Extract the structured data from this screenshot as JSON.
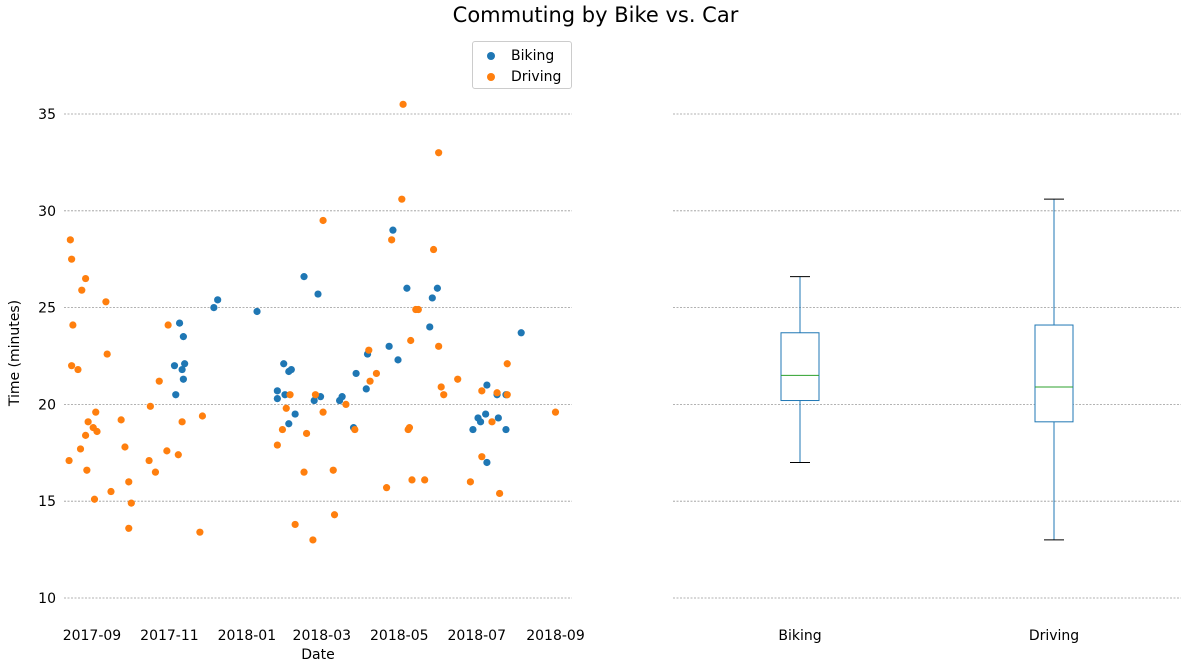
{
  "title": "Commuting by Bike vs. Car",
  "colors": {
    "biking": "#1f77b4",
    "driving": "#ff7f0e",
    "median": "#2ca02c",
    "grid": "#999999"
  },
  "chart_data": [
    {
      "type": "scatter",
      "xlabel": "Date",
      "ylabel": "Time (minutes)",
      "ylim": [
        9,
        38
      ],
      "xlim": [
        "2017-08-10",
        "2018-09-14"
      ],
      "x_ticks": [
        "2017-09",
        "2017-11",
        "2018-01",
        "2018-03",
        "2018-05",
        "2018-07",
        "2018-09"
      ],
      "y_ticks": [
        10,
        15,
        20,
        25,
        30,
        35
      ],
      "grid": "y-dotted",
      "legend": "top-right",
      "series": [
        {
          "name": "Biking",
          "points": [
            [
              "2017-11-06",
              20.5
            ],
            [
              "2017-11-05",
              22.0
            ],
            [
              "2017-11-09",
              24.2
            ],
            [
              "2017-11-11",
              21.8
            ],
            [
              "2017-11-12",
              23.5
            ],
            [
              "2017-11-12",
              21.3
            ],
            [
              "2017-11-13",
              22.1
            ],
            [
              "2017-12-06",
              25.0
            ],
            [
              "2017-12-09",
              25.4
            ],
            [
              "2018-01-09",
              24.8
            ],
            [
              "2018-01-25",
              20.3
            ],
            [
              "2018-01-25",
              20.7
            ],
            [
              "2018-01-30",
              22.1
            ],
            [
              "2018-01-31",
              20.5
            ],
            [
              "2018-02-03",
              21.7
            ],
            [
              "2018-02-05",
              21.8
            ],
            [
              "2018-02-03",
              19.0
            ],
            [
              "2018-02-08",
              19.5
            ],
            [
              "2018-02-15",
              26.6
            ],
            [
              "2018-02-23",
              20.2
            ],
            [
              "2018-02-26",
              25.7
            ],
            [
              "2018-02-28",
              20.4
            ],
            [
              "2018-03-15",
              20.2
            ],
            [
              "2018-03-17",
              20.4
            ],
            [
              "2018-03-26",
              18.8
            ],
            [
              "2018-03-28",
              21.6
            ],
            [
              "2018-04-05",
              20.8
            ],
            [
              "2018-04-06",
              22.6
            ],
            [
              "2018-04-23",
              23.0
            ],
            [
              "2018-04-26",
              29.0
            ],
            [
              "2018-04-30",
              22.3
            ],
            [
              "2018-05-07",
              26.0
            ],
            [
              "2018-05-25",
              24.0
            ],
            [
              "2018-05-27",
              25.5
            ],
            [
              "2018-05-31",
              26.0
            ],
            [
              "2018-06-28",
              18.7
            ],
            [
              "2018-07-02",
              19.3
            ],
            [
              "2018-07-04",
              19.1
            ],
            [
              "2018-07-08",
              19.5
            ],
            [
              "2018-07-09",
              21.0
            ],
            [
              "2018-07-09",
              17.0
            ],
            [
              "2018-07-17",
              20.5
            ],
            [
              "2018-07-18",
              19.3
            ],
            [
              "2018-07-24",
              20.5
            ],
            [
              "2018-07-24",
              18.7
            ],
            [
              "2018-08-05",
              23.7
            ]
          ]
        },
        {
          "name": "Driving",
          "points": [
            [
              "2017-08-14",
              17.1
            ],
            [
              "2017-08-15",
              28.5
            ],
            [
              "2017-08-16",
              27.5
            ],
            [
              "2017-08-16",
              22.0
            ],
            [
              "2017-08-17",
              24.1
            ],
            [
              "2017-08-21",
              21.8
            ],
            [
              "2017-08-23",
              17.7
            ],
            [
              "2017-08-24",
              25.9
            ],
            [
              "2017-08-27",
              26.5
            ],
            [
              "2017-08-27",
              18.4
            ],
            [
              "2017-08-28",
              16.6
            ],
            [
              "2017-08-29",
              19.1
            ],
            [
              "2017-09-02",
              18.8
            ],
            [
              "2017-09-03",
              15.1
            ],
            [
              "2017-09-04",
              19.6
            ],
            [
              "2017-09-05",
              18.6
            ],
            [
              "2017-09-12",
              25.3
            ],
            [
              "2017-09-13",
              22.6
            ],
            [
              "2017-09-16",
              15.5
            ],
            [
              "2017-09-24",
              19.2
            ],
            [
              "2017-09-27",
              17.8
            ],
            [
              "2017-09-30",
              13.6
            ],
            [
              "2017-09-30",
              16.0
            ],
            [
              "2017-10-02",
              14.9
            ],
            [
              "2017-10-16",
              17.1
            ],
            [
              "2017-10-17",
              19.9
            ],
            [
              "2017-10-21",
              16.5
            ],
            [
              "2017-10-24",
              21.2
            ],
            [
              "2017-10-30",
              17.6
            ],
            [
              "2017-10-31",
              24.1
            ],
            [
              "2017-11-08",
              17.4
            ],
            [
              "2017-11-11",
              19.1
            ],
            [
              "2017-11-25",
              13.4
            ],
            [
              "2017-11-27",
              19.4
            ],
            [
              "2018-01-25",
              17.9
            ],
            [
              "2018-01-29",
              18.7
            ],
            [
              "2018-02-01",
              19.8
            ],
            [
              "2018-02-04",
              20.5
            ],
            [
              "2018-02-08",
              13.8
            ],
            [
              "2018-02-15",
              16.5
            ],
            [
              "2018-02-17",
              18.5
            ],
            [
              "2018-02-22",
              13.0
            ],
            [
              "2018-02-24",
              20.5
            ],
            [
              "2018-03-02",
              29.5
            ],
            [
              "2018-03-02",
              19.6
            ],
            [
              "2018-03-10",
              16.6
            ],
            [
              "2018-03-11",
              14.3
            ],
            [
              "2018-03-20",
              20.0
            ],
            [
              "2018-03-27",
              18.7
            ],
            [
              "2018-04-07",
              22.8
            ],
            [
              "2018-04-08",
              21.2
            ],
            [
              "2018-04-13",
              21.6
            ],
            [
              "2018-04-21",
              15.7
            ],
            [
              "2018-04-25",
              28.5
            ],
            [
              "2018-05-03",
              30.6
            ],
            [
              "2018-05-04",
              35.5
            ],
            [
              "2018-05-08",
              18.7
            ],
            [
              "2018-05-09",
              18.8
            ],
            [
              "2018-05-10",
              23.3
            ],
            [
              "2018-05-11",
              16.1
            ],
            [
              "2018-05-14",
              24.9
            ],
            [
              "2018-05-16",
              24.9
            ],
            [
              "2018-05-21",
              16.1
            ],
            [
              "2018-05-28",
              28.0
            ],
            [
              "2018-06-01",
              33.0
            ],
            [
              "2018-06-01",
              23.0
            ],
            [
              "2018-06-03",
              20.9
            ],
            [
              "2018-06-05",
              20.5
            ],
            [
              "2018-06-16",
              21.3
            ],
            [
              "2018-06-26",
              16.0
            ],
            [
              "2018-07-05",
              20.7
            ],
            [
              "2018-07-05",
              17.3
            ],
            [
              "2018-07-13",
              19.1
            ],
            [
              "2018-07-17",
              20.6
            ],
            [
              "2018-07-19",
              15.4
            ],
            [
              "2018-07-25",
              22.1
            ],
            [
              "2018-07-25",
              20.5
            ],
            [
              "2018-09-01",
              19.6
            ]
          ]
        }
      ]
    },
    {
      "type": "box",
      "categories": [
        "Biking",
        "Driving"
      ],
      "ylim": [
        9,
        38
      ],
      "grid": "y-dotted",
      "boxes": [
        {
          "name": "Biking",
          "min": 17.0,
          "q1": 20.2,
          "median": 21.5,
          "q3": 23.7,
          "max": 26.6
        },
        {
          "name": "Driving",
          "min": 13.0,
          "q1": 19.1,
          "median": 20.9,
          "q3": 24.1,
          "max": 30.6
        }
      ]
    }
  ]
}
